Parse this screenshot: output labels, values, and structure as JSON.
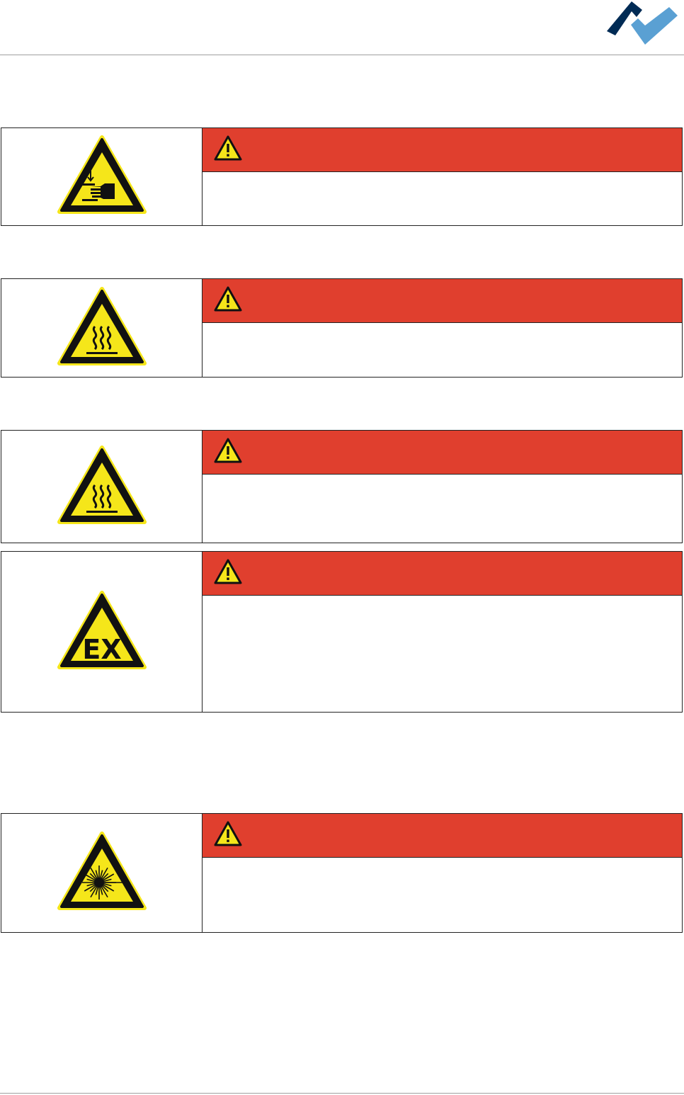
{
  "colors": {
    "danger_band": "#e03f2e",
    "sign_yellow": "#f5e61a",
    "logo_dark": "#002b55",
    "logo_light": "#5aa0d3"
  },
  "warnings": [
    {
      "symbol": "hand-crush-icon",
      "signal_icon": "warning-triangle-icon"
    },
    {
      "symbol": "hot-surface-icon",
      "signal_icon": "warning-triangle-icon"
    },
    {
      "symbol": "hot-surface-icon",
      "signal_icon": "warning-triangle-icon"
    },
    {
      "symbol": "explosive-atmosphere-icon",
      "signal_icon": "warning-triangle-icon",
      "symbol_text": "EX"
    },
    {
      "symbol": "laser-beam-icon",
      "signal_icon": "warning-triangle-icon"
    }
  ]
}
